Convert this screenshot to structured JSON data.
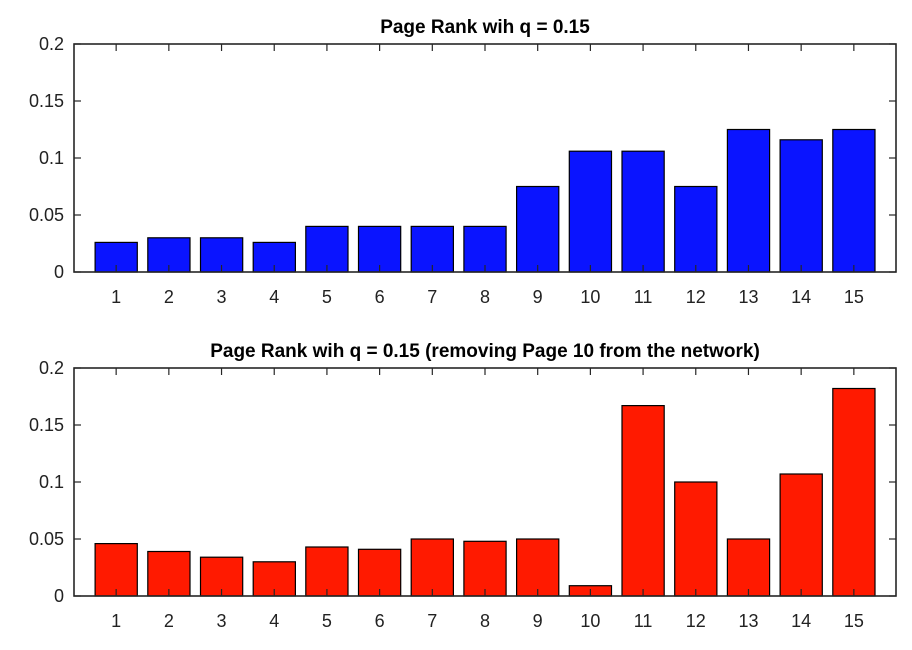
{
  "chart_data": [
    {
      "type": "bar",
      "title": "Page Rank wih q = 0.15",
      "xlabel": "",
      "ylabel": "",
      "categories": [
        "1",
        "2",
        "3",
        "4",
        "5",
        "6",
        "7",
        "8",
        "9",
        "10",
        "11",
        "12",
        "13",
        "14",
        "15"
      ],
      "values": [
        0.026,
        0.03,
        0.03,
        0.026,
        0.04,
        0.04,
        0.04,
        0.04,
        0.075,
        0.106,
        0.106,
        0.075,
        0.125,
        0.116,
        0.125
      ],
      "ylim": [
        0,
        0.2
      ],
      "yticks": [
        "0",
        "0.05",
        "0.1",
        "0.15",
        "0.2"
      ],
      "color": "#0a14ff",
      "grid": false
    },
    {
      "type": "bar",
      "title": "Page Rank wih q = 0.15 (removing Page 10 from the network)",
      "xlabel": "",
      "ylabel": "",
      "categories": [
        "1",
        "2",
        "3",
        "4",
        "5",
        "6",
        "7",
        "8",
        "9",
        "10",
        "11",
        "12",
        "13",
        "14",
        "15"
      ],
      "values": [
        0.046,
        0.039,
        0.034,
        0.03,
        0.043,
        0.041,
        0.05,
        0.048,
        0.05,
        0.009,
        0.167,
        0.1,
        0.05,
        0.107,
        0.182
      ],
      "ylim": [
        0,
        0.2
      ],
      "yticks": [
        "0",
        "0.05",
        "0.1",
        "0.15",
        "0.2"
      ],
      "color": "#ff1a00",
      "grid": false
    }
  ]
}
